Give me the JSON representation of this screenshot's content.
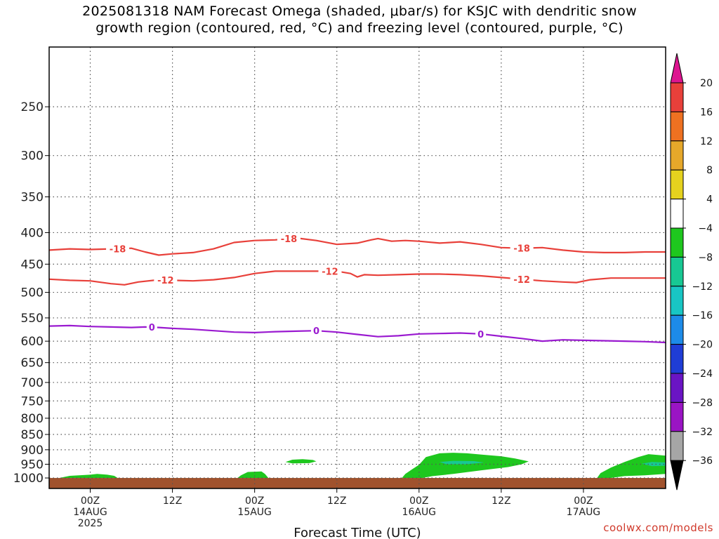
{
  "chart_data": {
    "type": "heatmap",
    "title": "2025081318 NAM Forecast Omega (shaded, μbar/s) for KSJC with dendritic snow growth region (contoured, red, °C) and freezing level (contoured, purple, °C)",
    "title_lines": [
      "2025081318 NAM Forecast Omega (shaded, μbar/s) for KSJC with dendritic snow",
      "growth region (contoured, red, °C) and freezing level (contoured, purple, °C)"
    ],
    "xlabel": "Forecast Time (UTC)",
    "ylabel": "",
    "x_range_hours": [
      -6,
      84
    ],
    "y_log_scale": true,
    "y_range_hpa": [
      1040,
      200
    ],
    "grid": true,
    "yticks": [
      250,
      300,
      350,
      400,
      450,
      500,
      550,
      600,
      650,
      700,
      750,
      800,
      850,
      900,
      950,
      1000
    ],
    "xticks": [
      {
        "hour": 0,
        "label": "00Z",
        "sub": "14AUG",
        "sub2": "2025"
      },
      {
        "hour": 12,
        "label": "12Z",
        "sub": "",
        "sub2": ""
      },
      {
        "hour": 24,
        "label": "00Z",
        "sub": "15AUG",
        "sub2": ""
      },
      {
        "hour": 36,
        "label": "12Z",
        "sub": "",
        "sub2": ""
      },
      {
        "hour": 48,
        "label": "00Z",
        "sub": "16AUG",
        "sub2": ""
      },
      {
        "hour": 60,
        "label": "12Z",
        "sub": "",
        "sub2": ""
      },
      {
        "hour": 72,
        "label": "00Z",
        "sub": "17AUG",
        "sub2": ""
      }
    ],
    "contours": [
      {
        "name": "-18",
        "label": "-18",
        "color": "#e8403a",
        "points": [
          [
            -6,
            427
          ],
          [
            -3,
            425
          ],
          [
            0,
            426
          ],
          [
            3,
            425
          ],
          [
            6,
            424
          ],
          [
            8,
            430
          ],
          [
            10,
            435
          ],
          [
            12,
            433
          ],
          [
            15,
            431
          ],
          [
            18,
            425
          ],
          [
            21,
            415
          ],
          [
            24,
            412
          ],
          [
            27,
            411
          ],
          [
            30,
            408
          ],
          [
            33,
            412
          ],
          [
            36,
            418
          ],
          [
            39,
            416
          ],
          [
            41,
            411
          ],
          [
            42,
            409
          ],
          [
            44,
            413
          ],
          [
            46,
            412
          ],
          [
            48,
            413
          ],
          [
            51,
            416
          ],
          [
            54,
            414
          ],
          [
            57,
            418
          ],
          [
            60,
            423
          ],
          [
            63,
            424
          ],
          [
            66,
            423
          ],
          [
            69,
            427
          ],
          [
            72,
            430
          ],
          [
            75,
            431
          ],
          [
            78,
            431
          ],
          [
            81,
            430
          ],
          [
            84,
            430
          ]
        ],
        "labels_at": [
          4,
          29,
          63
        ]
      },
      {
        "name": "-12",
        "label": "-12",
        "color": "#e8403a",
        "points": [
          [
            -6,
            476
          ],
          [
            -3,
            478
          ],
          [
            0,
            479
          ],
          [
            3,
            484
          ],
          [
            5,
            486
          ],
          [
            7,
            481
          ],
          [
            10,
            477
          ],
          [
            12,
            478
          ],
          [
            15,
            479
          ],
          [
            18,
            477
          ],
          [
            21,
            473
          ],
          [
            24,
            466
          ],
          [
            27,
            462
          ],
          [
            30,
            462
          ],
          [
            33,
            462
          ],
          [
            36,
            462
          ],
          [
            38,
            466
          ],
          [
            39,
            472
          ],
          [
            40,
            468
          ],
          [
            42,
            469
          ],
          [
            45,
            468
          ],
          [
            48,
            467
          ],
          [
            51,
            467
          ],
          [
            54,
            468
          ],
          [
            57,
            470
          ],
          [
            60,
            473
          ],
          [
            63,
            476
          ],
          [
            66,
            479
          ],
          [
            69,
            481
          ],
          [
            71,
            482
          ],
          [
            73,
            477
          ],
          [
            76,
            474
          ],
          [
            79,
            474
          ],
          [
            84,
            474
          ]
        ],
        "labels_at": [
          11,
          35,
          63
        ]
      },
      {
        "name": "0",
        "label": "0",
        "color": "#9a1ad0",
        "points": [
          [
            -6,
            567
          ],
          [
            -3,
            566
          ],
          [
            0,
            568
          ],
          [
            3,
            569
          ],
          [
            6,
            570
          ],
          [
            8,
            569
          ],
          [
            10,
            570
          ],
          [
            12,
            572
          ],
          [
            15,
            574
          ],
          [
            18,
            577
          ],
          [
            21,
            580
          ],
          [
            24,
            581
          ],
          [
            27,
            579
          ],
          [
            30,
            578
          ],
          [
            33,
            577
          ],
          [
            36,
            580
          ],
          [
            39,
            585
          ],
          [
            42,
            590
          ],
          [
            45,
            588
          ],
          [
            48,
            584
          ],
          [
            51,
            583
          ],
          [
            54,
            582
          ],
          [
            57,
            584
          ],
          [
            60,
            589
          ],
          [
            63,
            594
          ],
          [
            66,
            600
          ],
          [
            69,
            597
          ],
          [
            72,
            598
          ],
          [
            75,
            599
          ],
          [
            78,
            600
          ],
          [
            81,
            601
          ],
          [
            84,
            603
          ]
        ],
        "labels_at": [
          9,
          33,
          57
        ]
      }
    ],
    "omega_regions": [
      {
        "name": "rising-weak-1",
        "value_range": [
          -8,
          -4
        ],
        "color": "#1ec71e",
        "points": [
          [
            -4.5,
            1000
          ],
          [
            -3,
            992
          ],
          [
            0,
            988
          ],
          [
            1,
            985
          ],
          [
            2.5,
            988
          ],
          [
            3.5,
            992
          ],
          [
            4,
            1000
          ]
        ]
      },
      {
        "name": "rising-weak-2",
        "value_range": [
          -8,
          -4
        ],
        "color": "#1ec71e",
        "points": [
          [
            21.5,
            1000
          ],
          [
            22,
            990
          ],
          [
            23,
            978
          ],
          [
            25,
            976
          ],
          [
            25.5,
            985
          ],
          [
            26,
            1000
          ]
        ]
      },
      {
        "name": "rising-weak-3",
        "value_range": [
          -8,
          -4
        ],
        "color": "#1ec71e",
        "points": [
          [
            28.5,
            942
          ],
          [
            29.5,
            934
          ],
          [
            31,
            932
          ],
          [
            32.5,
            935
          ],
          [
            33,
            940
          ],
          [
            32,
            946
          ],
          [
            29.5,
            947
          ]
        ]
      },
      {
        "name": "rising-weak-4",
        "value_range": [
          -8,
          -4
        ],
        "color": "#1ec71e",
        "points": [
          [
            45.5,
            1000
          ],
          [
            46,
            985
          ],
          [
            47,
            968
          ],
          [
            48,
            952
          ],
          [
            49,
            925
          ],
          [
            51,
            912
          ],
          [
            53,
            910
          ],
          [
            55,
            912
          ],
          [
            57,
            916
          ],
          [
            60,
            922
          ],
          [
            62,
            930
          ],
          [
            64,
            940
          ],
          [
            63,
            950
          ],
          [
            61,
            960
          ],
          [
            57,
            972
          ],
          [
            53,
            985
          ],
          [
            50,
            993
          ],
          [
            48.5,
            1000
          ]
        ]
      },
      {
        "name": "rising-moderate-4",
        "value_range": [
          -12,
          -8
        ],
        "color": "#17c893",
        "points": [
          [
            51,
            942
          ],
          [
            53,
            938
          ],
          [
            56,
            939
          ],
          [
            57.5,
            944
          ],
          [
            55,
            950
          ],
          [
            52,
            950
          ]
        ]
      },
      {
        "name": "rising-weak-5",
        "value_range": [
          -8,
          -4
        ],
        "color": "#1ec71e",
        "points": [
          [
            74,
            1000
          ],
          [
            74.5,
            982
          ],
          [
            76,
            962
          ],
          [
            78,
            942
          ],
          [
            80,
            925
          ],
          [
            81.5,
            915
          ],
          [
            83,
            918
          ],
          [
            84,
            920
          ],
          [
            84,
            985
          ],
          [
            81,
            990
          ],
          [
            78,
            993
          ],
          [
            76,
            1000
          ]
        ]
      },
      {
        "name": "rising-moderate-5",
        "value_range": [
          -12,
          -8
        ],
        "color": "#17c893",
        "points": [
          [
            80.5,
            948
          ],
          [
            82,
            942
          ],
          [
            84,
            944
          ],
          [
            84,
            955
          ],
          [
            82,
            957
          ]
        ]
      }
    ],
    "ground_level_hpa": 1000,
    "ground_color": "#a0522d",
    "colorbar": {
      "levels": [
        20,
        16,
        12,
        8,
        4,
        -4,
        -8,
        -12,
        -16,
        -20,
        -24,
        -28,
        -32,
        -36
      ],
      "labels": [
        "20",
        "16",
        "12",
        "8",
        "4",
        "−4",
        "−8",
        "−12",
        "−16",
        "−20",
        "−24",
        "−28",
        "−32",
        "−36"
      ],
      "colors": [
        "#dd1590",
        "#e8403a",
        "#ee7121",
        "#e6a82a",
        "#e5d21e",
        "#ffffff",
        "#1ec71e",
        "#17c893",
        "#18c6c4",
        "#1d8be8",
        "#1f3dd6",
        "#6a14c4",
        "#9a14c4",
        "#a6a6a6",
        "#000000"
      ]
    }
  },
  "credit": "coolwx.com/models"
}
